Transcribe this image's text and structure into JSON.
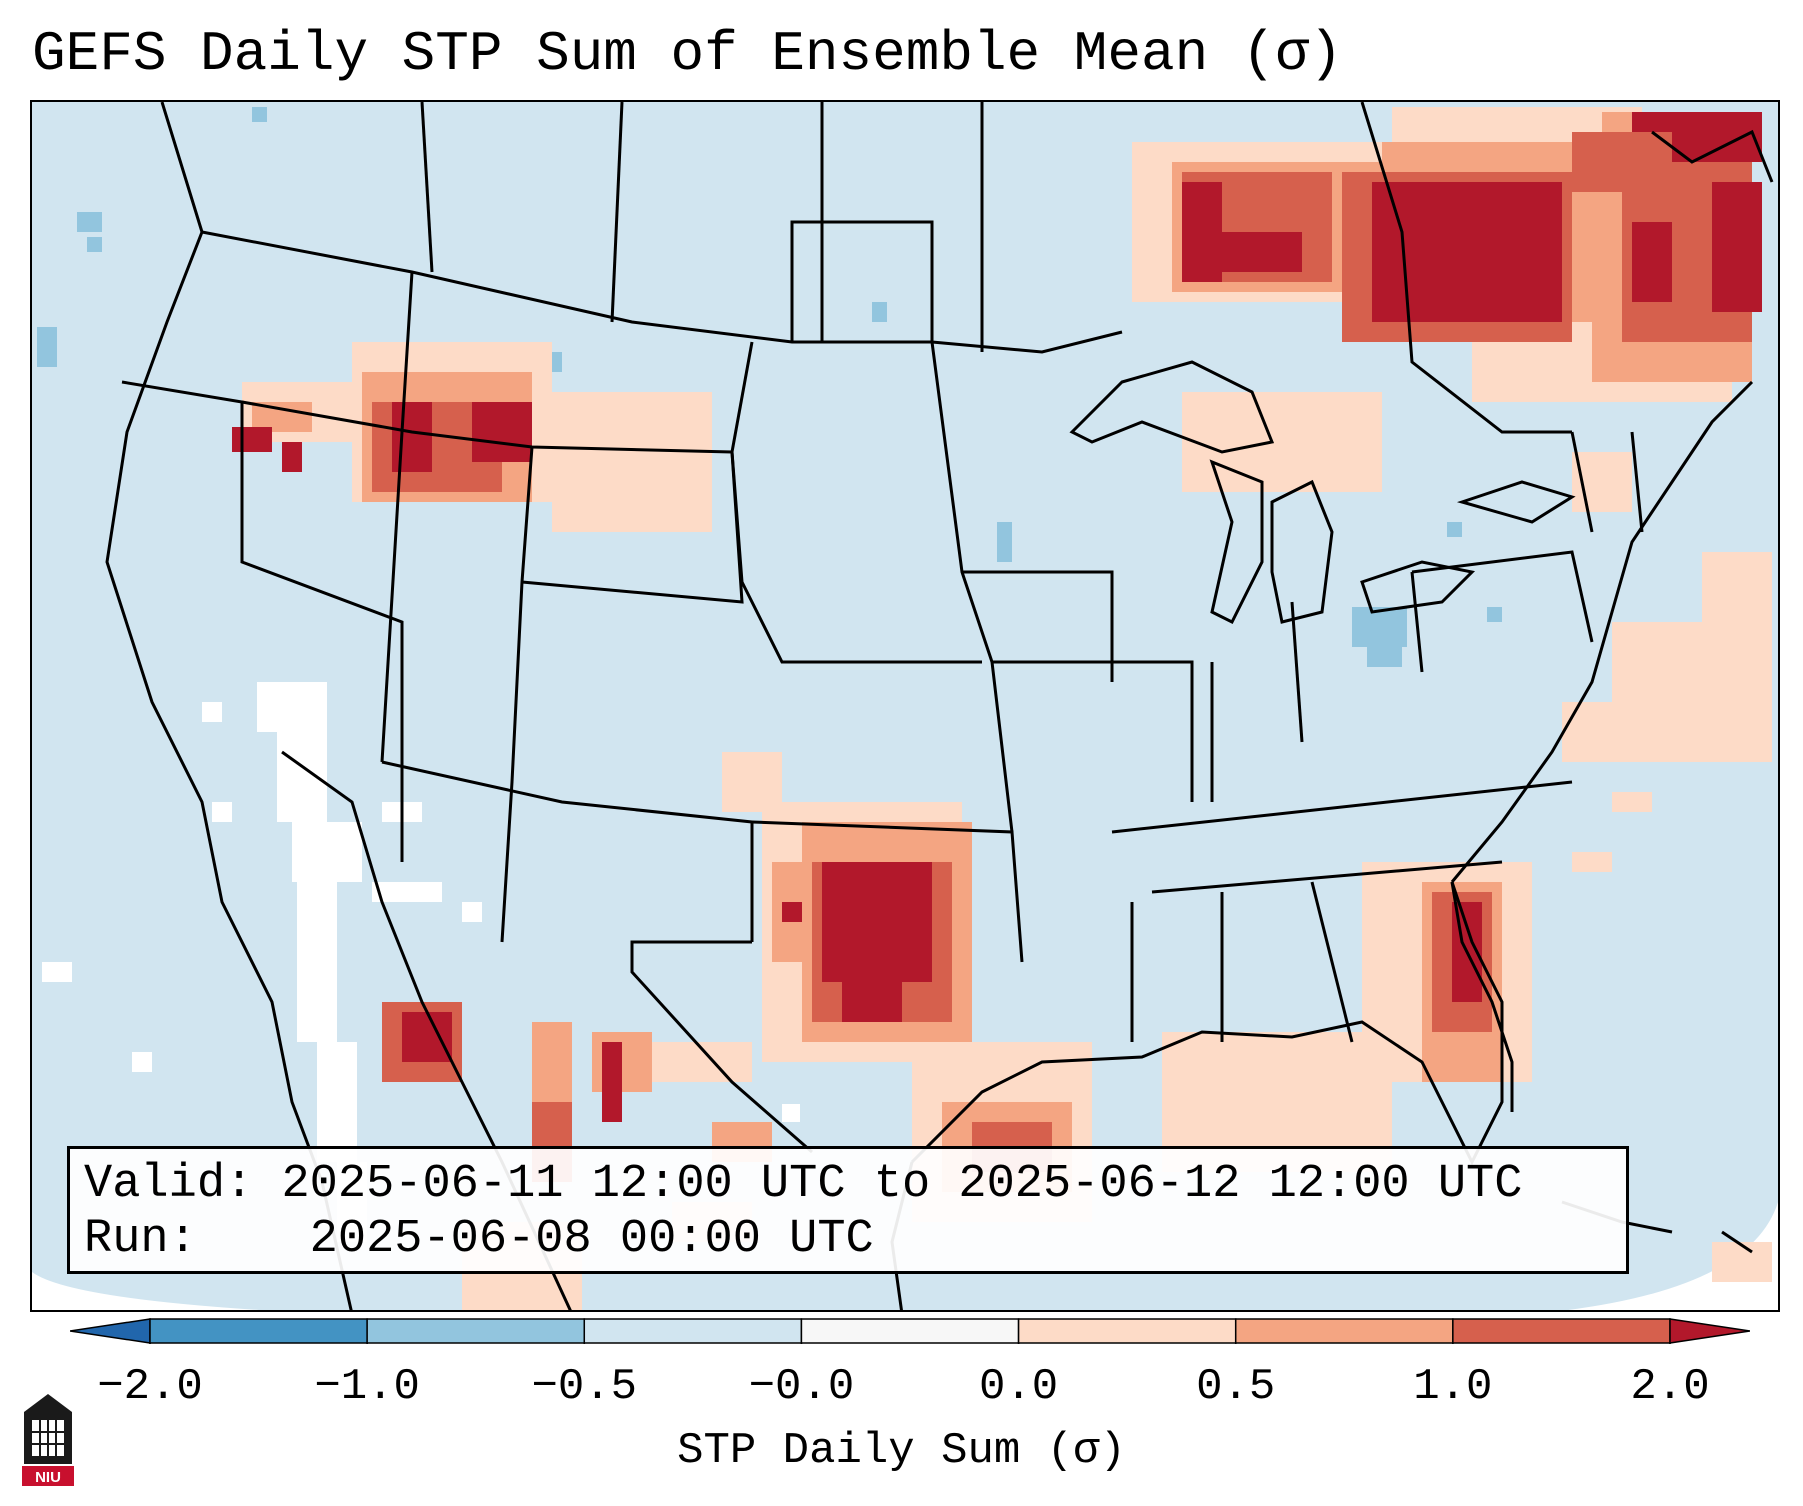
{
  "title": "GEFS Daily STP Sum of Ensemble Mean (σ)",
  "info": {
    "valid_label": "Valid:",
    "valid_value": "2025-06-11 12:00 UTC to 2025-06-12 12:00 UTC",
    "run_label": "Run:",
    "run_value": "2025-06-08 00:00 UTC"
  },
  "colorbar": {
    "label": "STP Daily Sum (σ)",
    "ticks": [
      "−2.0",
      "−1.0",
      "−0.5",
      "−0.0",
      "0.0",
      "0.5",
      "1.0",
      "2.0"
    ],
    "colors": [
      "#2166ac",
      "#4393c3",
      "#92c5de",
      "#d1e5f0",
      "#f7f7f7",
      "#fddbc7",
      "#f4a582",
      "#d6604d",
      "#b2182b"
    ]
  },
  "map": {
    "background_color": "#d1e5f0",
    "logo_text": "NIU"
  }
}
